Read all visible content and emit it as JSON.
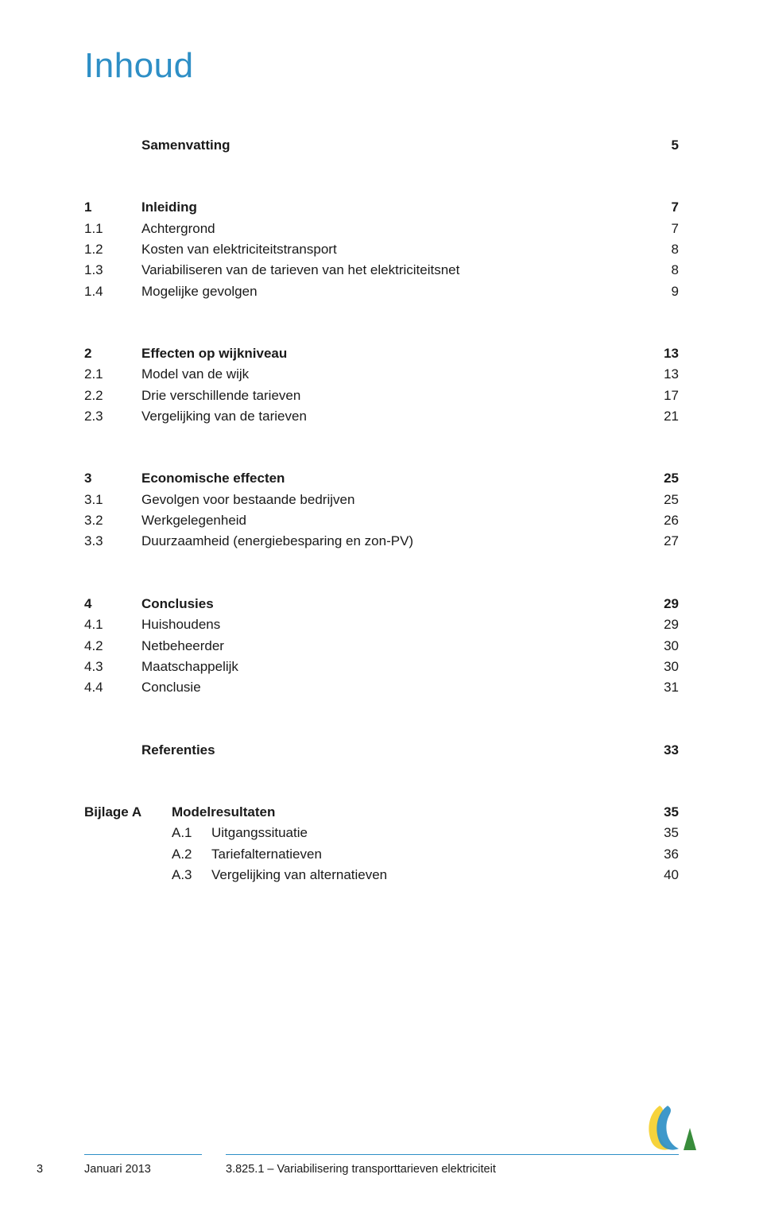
{
  "colors": {
    "title": "#2e8fc6",
    "text": "#1a1a1a",
    "rule": "#2e8fc6",
    "footer_text": "#1a1a1a",
    "logo_yellow": "#f6d33c",
    "logo_blue": "#2e8fc6",
    "logo_green": "#388c3b"
  },
  "title": "Inhoud",
  "toc": [
    {
      "rows": [
        {
          "num": "",
          "label": "Samenvatting",
          "page": "5",
          "bold": true
        }
      ]
    },
    {
      "rows": [
        {
          "num": "1",
          "label": "Inleiding",
          "page": "7",
          "bold": true
        },
        {
          "num": "1.1",
          "label": "Achtergrond",
          "page": "7",
          "bold": false
        },
        {
          "num": "1.2",
          "label": "Kosten van elektriciteitstransport",
          "page": "8",
          "bold": false
        },
        {
          "num": "1.3",
          "label": "Variabiliseren van de tarieven van het elektriciteitsnet",
          "page": "8",
          "bold": false
        },
        {
          "num": "1.4",
          "label": "Mogelijke gevolgen",
          "page": "9",
          "bold": false
        }
      ]
    },
    {
      "rows": [
        {
          "num": "2",
          "label": "Effecten op wijkniveau",
          "page": "13",
          "bold": true
        },
        {
          "num": "2.1",
          "label": "Model van de wijk",
          "page": "13",
          "bold": false
        },
        {
          "num": "2.2",
          "label": "Drie verschillende tarieven",
          "page": "17",
          "bold": false
        },
        {
          "num": "2.3",
          "label": "Vergelijking van de tarieven",
          "page": "21",
          "bold": false
        }
      ]
    },
    {
      "rows": [
        {
          "num": "3",
          "label": "Economische effecten",
          "page": "25",
          "bold": true
        },
        {
          "num": "3.1",
          "label": "Gevolgen voor bestaande bedrijven",
          "page": "25",
          "bold": false
        },
        {
          "num": "3.2",
          "label": "Werkgelegenheid",
          "page": "26",
          "bold": false
        },
        {
          "num": "3.3",
          "label": "Duurzaamheid (energiebesparing en zon-PV)",
          "page": "27",
          "bold": false
        }
      ]
    },
    {
      "rows": [
        {
          "num": "4",
          "label": "Conclusies",
          "page": "29",
          "bold": true
        },
        {
          "num": "4.1",
          "label": "Huishoudens",
          "page": "29",
          "bold": false
        },
        {
          "num": "4.2",
          "label": "Netbeheerder",
          "page": "30",
          "bold": false
        },
        {
          "num": "4.3",
          "label": "Maatschappelijk",
          "page": "30",
          "bold": false
        },
        {
          "num": "4.4",
          "label": "Conclusie",
          "page": "31",
          "bold": false
        }
      ]
    },
    {
      "rows": [
        {
          "num": "",
          "label": "Referenties",
          "page": "33",
          "bold": true
        }
      ]
    }
  ],
  "appendix": {
    "rows": [
      {
        "num": "Bijlage A",
        "sub": "",
        "label": "Modelresultaten",
        "page": "35",
        "bold": true
      },
      {
        "num": "",
        "sub": "A.1",
        "label": "Uitgangssituatie",
        "page": "35",
        "bold": false
      },
      {
        "num": "",
        "sub": "A.2",
        "label": "Tariefalternatieven",
        "page": "36",
        "bold": false
      },
      {
        "num": "",
        "sub": "A.3",
        "label": "Vergelijking van alternatieven",
        "page": "40",
        "bold": false
      }
    ]
  },
  "footer": {
    "page_number": "3",
    "date": "Januari 2013",
    "doc": "3.825.1 – Variabilisering transporttarieven elektriciteit"
  }
}
